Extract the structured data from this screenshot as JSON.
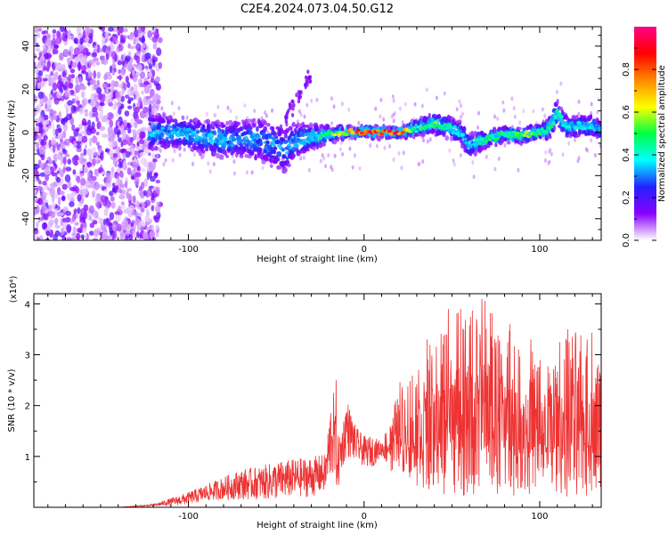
{
  "title": "C2E4.2024.073.04.50.G12",
  "chart_data": [
    {
      "type": "heatmap",
      "xlabel": "Height of straight line (km)",
      "ylabel": "Frequency (Hz)",
      "xlim": [
        -188,
        135
      ],
      "ylim": [
        -50,
        49
      ],
      "xticks": [
        -100,
        0,
        100
      ],
      "yticks": [
        -40,
        -20,
        0,
        20,
        40
      ],
      "colorbar": {
        "label": "Normalized spectral amplitude",
        "range": [
          0,
          1
        ],
        "ticks": [
          "0.0",
          "0.2",
          "0.4",
          "0.6",
          "0.8"
        ],
        "colormap": [
          "#ffffff",
          "#8800ff",
          "#2222ff",
          "#00ffff",
          "#00ff44",
          "#ffff00",
          "#ff8800",
          "#ff0000",
          "#ff0088"
        ]
      },
      "noise_region_x": [
        -188,
        -122
      ],
      "ridge": {
        "x": [
          -120,
          -110,
          -100,
          -90,
          -80,
          -70,
          -60,
          -50,
          -45,
          -40,
          -30,
          -20,
          -10,
          0,
          10,
          20,
          30,
          40,
          50,
          55,
          60,
          70,
          80,
          90,
          100,
          105,
          110,
          115,
          120,
          130,
          135
        ],
        "center": [
          0,
          0,
          -1,
          -2,
          -3,
          -3,
          -3,
          -6,
          -8,
          -4,
          -2,
          -1,
          0,
          0,
          0,
          0,
          2,
          4,
          2,
          0,
          -6,
          -3,
          -1,
          -1,
          0,
          1,
          9,
          3,
          3,
          3,
          1
        ],
        "halfwidth": [
          7,
          6,
          6,
          7,
          7,
          7,
          8,
          9,
          9,
          7,
          5,
          3,
          2,
          2,
          2,
          2,
          3,
          4,
          4,
          4,
          5,
          3,
          3,
          3,
          3,
          4,
          5,
          4,
          4,
          4,
          3
        ],
        "peak_amplitude": [
          0.35,
          0.35,
          0.35,
          0.35,
          0.35,
          0.3,
          0.3,
          0.3,
          0.3,
          0.35,
          0.4,
          0.55,
          0.7,
          0.95,
          0.9,
          0.9,
          0.5,
          0.55,
          0.45,
          0.4,
          0.35,
          0.55,
          0.55,
          0.6,
          0.55,
          0.55,
          0.45,
          0.45,
          0.4,
          0.4,
          0.4
        ]
      },
      "spur": {
        "x": [
          -45,
          -30
        ],
        "y": [
          5,
          27
        ]
      }
    },
    {
      "type": "line",
      "xlabel": "Height of straight line (km)",
      "ylabel": "SNR (10 * v/v)",
      "y_multiplier": "(x10⁴)",
      "xlim": [
        -188,
        135
      ],
      "ylim": [
        0,
        4.2
      ],
      "xticks": [
        -100,
        0,
        100
      ],
      "yticks": [
        1,
        2,
        3,
        4
      ],
      "color": "#ee3333",
      "envelope": {
        "x": [
          -188,
          -140,
          -120,
          -100,
          -90,
          -80,
          -70,
          -60,
          -50,
          -40,
          -30,
          -22,
          -18,
          -15,
          -12,
          -10,
          -5,
          0,
          5,
          10,
          15,
          20,
          25,
          30,
          40,
          50,
          60,
          70,
          80,
          90,
          100,
          110,
          120,
          130,
          135
        ],
        "low": [
          0,
          0,
          0.02,
          0.05,
          0.12,
          0.15,
          0.15,
          0.15,
          0.15,
          0.2,
          0.2,
          0.3,
          0.6,
          0.3,
          0.8,
          1.0,
          0.9,
          0.8,
          0.8,
          1.0,
          0.7,
          0.8,
          0.5,
          0.4,
          0.3,
          0.2,
          0.2,
          0.2,
          0.2,
          0.2,
          0.3,
          0.2,
          0.2,
          0.2,
          0.2
        ],
        "high": [
          0,
          0,
          0.06,
          0.3,
          0.45,
          0.6,
          0.75,
          0.8,
          0.9,
          0.95,
          1.0,
          1.05,
          2.5,
          1.4,
          1.7,
          2.2,
          1.6,
          1.4,
          1.4,
          1.3,
          1.8,
          2.5,
          2.6,
          3.0,
          3.3,
          3.8,
          3.9,
          4.1,
          3.6,
          3.3,
          3.0,
          3.3,
          3.6,
          3.6,
          2.7
        ]
      },
      "peaks": [
        {
          "x": -16,
          "y": 2.5
        },
        {
          "x": 36,
          "y": 3.3
        },
        {
          "x": 45,
          "y": 3.2
        },
        {
          "x": 47,
          "y": 3.4
        },
        {
          "x": 48,
          "y": 3.9
        },
        {
          "x": 55,
          "y": 3.9
        },
        {
          "x": 64,
          "y": 3.7
        },
        {
          "x": 67,
          "y": 4.1
        },
        {
          "x": 75,
          "y": 3.1
        },
        {
          "x": 83,
          "y": 3.6
        },
        {
          "x": 95,
          "y": 3.3
        },
        {
          "x": 116,
          "y": 3.5
        },
        {
          "x": 127,
          "y": 3.3
        }
      ]
    }
  ]
}
